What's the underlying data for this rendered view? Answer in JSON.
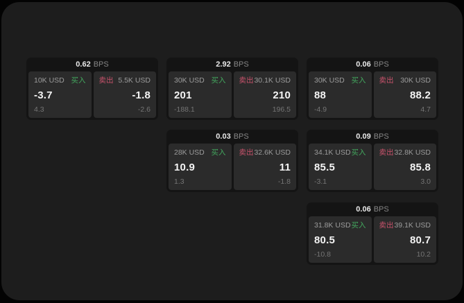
{
  "labels": {
    "bps": "BPS",
    "buy": "买入",
    "sell": "卖出"
  },
  "colors": {
    "buy": "#43a85e",
    "sell": "#c9536c",
    "page_bg": "#1d1d1d",
    "card_bg": "#141414",
    "panel_bg": "#2b2b2b"
  },
  "cards": [
    {
      "spread_bps": "0.62",
      "buy": {
        "amount": "10K USD",
        "price": "-3.7",
        "change": "4.3"
      },
      "sell": {
        "amount": "5.5K USD",
        "price": "-1.8",
        "change": "-2.6"
      }
    },
    {
      "spread_bps": "2.92",
      "buy": {
        "amount": "30K USD",
        "price": "201",
        "change": "-188.1"
      },
      "sell": {
        "amount": "30.1K USD",
        "price": "210",
        "change": "196.5"
      }
    },
    {
      "spread_bps": "0.06",
      "buy": {
        "amount": "30K USD",
        "price": "88",
        "change": "-4.9"
      },
      "sell": {
        "amount": "30K USD",
        "price": "88.2",
        "change": "4.7"
      }
    },
    {
      "spread_bps": "0.03",
      "buy": {
        "amount": "28K USD",
        "price": "10.9",
        "change": "1.3"
      },
      "sell": {
        "amount": "32.6K USD",
        "price": "11",
        "change": "-1.8"
      }
    },
    {
      "spread_bps": "0.09",
      "buy": {
        "amount": "34.1K USD",
        "price": "85.5",
        "change": "-3.1"
      },
      "sell": {
        "amount": "32.8K USD",
        "price": "85.8",
        "change": "3.0"
      }
    },
    {
      "spread_bps": "0.06",
      "buy": {
        "amount": "31.8K USD",
        "price": "80.5",
        "change": "-10.8"
      },
      "sell": {
        "amount": "39.1K USD",
        "price": "80.7",
        "change": "10.2"
      }
    }
  ]
}
